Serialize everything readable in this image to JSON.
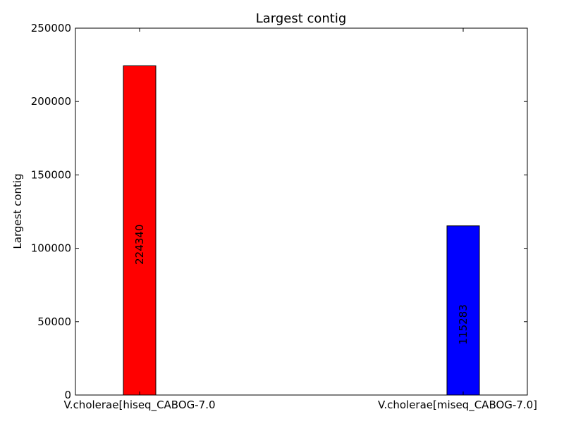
{
  "chart_data": {
    "type": "bar",
    "title": "Largest contig",
    "xlabel": "",
    "ylabel": "Largest contig",
    "categories": [
      "V.cholerae[hiseq_CABOG-7.0",
      "V.cholerae[miseq_CABOG-7.0]"
    ],
    "values": [
      224340,
      115283
    ],
    "value_labels": [
      "224340",
      "115283"
    ],
    "colors": [
      "#ff0000",
      "#0000ff"
    ],
    "ylim": [
      0,
      250000
    ],
    "yticks": [
      0,
      50000,
      100000,
      150000,
      200000,
      250000
    ],
    "ytick_labels": [
      "0",
      "50000",
      "100000",
      "150000",
      "200000",
      "250000"
    ],
    "grid": false,
    "legend": "none"
  }
}
